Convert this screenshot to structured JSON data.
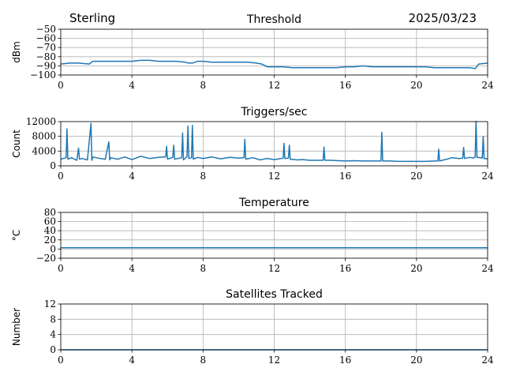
{
  "header": {
    "station": "Sterling",
    "date": "2025/03/23"
  },
  "colors": {
    "series": "#1f77b4",
    "grid": "#b0b0b0"
  },
  "chart_data": [
    {
      "type": "line",
      "title": "Threshold",
      "xlabel": "",
      "ylabel": "dBm",
      "xlim": [
        0,
        24
      ],
      "ylim": [
        -100,
        -50
      ],
      "xticks": [
        0,
        4,
        8,
        12,
        16,
        20,
        24
      ],
      "yticks": [
        -100,
        -90,
        -80,
        -70,
        -60,
        -50
      ],
      "ytick_labels": [
        "−100",
        "−90",
        "−80",
        "−70",
        "−60",
        "−50"
      ],
      "grid": true,
      "series": [
        {
          "x": [
            0,
            0.5,
            1.0,
            1.6,
            1.8,
            2.5,
            3.0,
            3.5,
            4.0,
            4.5,
            5.0,
            5.5,
            6.0,
            6.5,
            7.0,
            7.2,
            7.4,
            7.7,
            8.0,
            8.5,
            9.0,
            9.5,
            10.0,
            10.5,
            11.0,
            11.3,
            11.6,
            12.0,
            12.5,
            13.0,
            13.5,
            14.0,
            14.5,
            15.0,
            15.5,
            16.0,
            16.5,
            17.0,
            17.5,
            18.0,
            18.5,
            19.0,
            19.5,
            20.0,
            20.5,
            21.0,
            21.5,
            22.0,
            22.5,
            23.0,
            23.3,
            23.5,
            24.0
          ],
          "y": [
            -88,
            -87,
            -87,
            -88,
            -85,
            -85,
            -85,
            -85,
            -85,
            -84,
            -84,
            -85,
            -85,
            -85,
            -86,
            -87,
            -87,
            -85,
            -85,
            -86,
            -86,
            -86,
            -86,
            -86,
            -87,
            -88,
            -91,
            -91,
            -91,
            -92,
            -92,
            -92,
            -92,
            -92,
            -92,
            -91,
            -91,
            -90,
            -91,
            -91,
            -91,
            -91,
            -91,
            -91,
            -91,
            -92,
            -92,
            -92,
            -92,
            -92,
            -93,
            -88,
            -87
          ]
        }
      ]
    },
    {
      "type": "line",
      "title": "Triggers/sec",
      "xlabel": "",
      "ylabel": "Count",
      "xlim": [
        0,
        24
      ],
      "ylim": [
        0,
        12000
      ],
      "xticks": [
        0,
        4,
        8,
        12,
        16,
        20,
        24
      ],
      "yticks": [
        0,
        4000,
        8000,
        12000
      ],
      "ytick_labels": [
        "0",
        "4000",
        "8000",
        "12000"
      ],
      "grid": true,
      "series": [
        {
          "x": [
            0,
            0.3,
            0.35,
            0.4,
            0.6,
            0.9,
            1.0,
            1.05,
            1.2,
            1.5,
            1.7,
            1.75,
            1.8,
            2.2,
            2.5,
            2.7,
            2.75,
            2.8,
            3.2,
            3.6,
            4.0,
            4.5,
            5.0,
            5.5,
            5.9,
            5.95,
            6.0,
            6.3,
            6.35,
            6.4,
            6.8,
            6.85,
            6.9,
            7.1,
            7.15,
            7.2,
            7.35,
            7.4,
            7.45,
            7.7,
            8.0,
            8.5,
            9.0,
            9.5,
            10.0,
            10.3,
            10.35,
            10.4,
            10.8,
            11.2,
            11.6,
            12.0,
            12.4,
            12.5,
            12.55,
            12.6,
            12.8,
            12.85,
            12.9,
            13.3,
            13.6,
            14.0,
            14.5,
            14.75,
            14.8,
            14.85,
            15.2,
            15.6,
            16.0,
            16.5,
            17.0,
            17.5,
            17.9,
            18.0,
            18.05,
            18.1,
            18.5,
            19.0,
            19.5,
            20.0,
            20.5,
            21.0,
            21.2,
            21.25,
            21.3,
            21.7,
            22.0,
            22.4,
            22.6,
            22.65,
            22.7,
            23.0,
            23.2,
            23.3,
            23.35,
            23.4,
            23.6,
            23.7,
            23.75,
            23.8,
            24.0
          ],
          "y": [
            1800,
            2200,
            10000,
            1800,
            2200,
            1500,
            4800,
            1800,
            2000,
            1600,
            11500,
            1500,
            2400,
            2000,
            1800,
            6500,
            1600,
            2200,
            1800,
            2400,
            1700,
            2600,
            2000,
            2300,
            2400,
            5300,
            1800,
            2300,
            5600,
            1800,
            2200,
            8900,
            1600,
            2500,
            10800,
            2000,
            2200,
            11000,
            1800,
            2300,
            2000,
            2400,
            1900,
            2300,
            2100,
            2200,
            7200,
            1800,
            2200,
            1600,
            2000,
            1700,
            2000,
            2100,
            6100,
            2000,
            2100,
            5600,
            1800,
            1600,
            1700,
            1500,
            1500,
            1500,
            5100,
            1500,
            1500,
            1400,
            1300,
            1400,
            1300,
            1300,
            1300,
            1300,
            9100,
            1300,
            1300,
            1200,
            1200,
            1200,
            1200,
            1300,
            1300,
            4500,
            1300,
            1800,
            2200,
            2000,
            2100,
            5000,
            2000,
            2300,
            2100,
            2400,
            12200,
            2300,
            2200,
            2100,
            8000,
            2000,
            1900
          ]
        }
      ]
    },
    {
      "type": "line",
      "title": "Temperature",
      "xlabel": "",
      "ylabel": "°C",
      "xlim": [
        0,
        24
      ],
      "ylim": [
        -20,
        80
      ],
      "xticks": [
        0,
        4,
        8,
        12,
        16,
        20,
        24
      ],
      "yticks": [
        -20,
        0,
        20,
        40,
        60,
        80
      ],
      "ytick_labels": [
        "−20",
        "0",
        "20",
        "40",
        "60",
        "80"
      ],
      "grid": true,
      "series": [
        {
          "x": [
            0,
            4,
            8,
            12,
            16,
            20,
            24
          ],
          "y": [
            3,
            3,
            3,
            3,
            3,
            3,
            3
          ]
        }
      ]
    },
    {
      "type": "line",
      "title": "Satellites Tracked",
      "xlabel": "",
      "ylabel": "Number",
      "xlim": [
        0,
        24
      ],
      "ylim": [
        0,
        12
      ],
      "xticks": [
        0,
        4,
        8,
        12,
        16,
        20,
        24
      ],
      "yticks": [
        0,
        4,
        8,
        12
      ],
      "ytick_labels": [
        "0",
        "4",
        "8",
        "12"
      ],
      "grid": true,
      "series": [
        {
          "x": [
            0,
            4,
            8,
            12,
            16,
            20,
            24
          ],
          "y": [
            0,
            0,
            0,
            0,
            0,
            0,
            0
          ]
        }
      ]
    }
  ]
}
